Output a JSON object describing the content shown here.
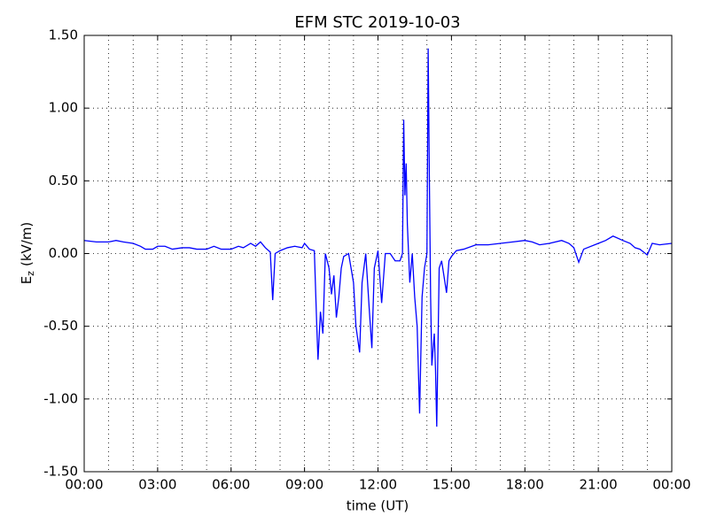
{
  "chart_data": {
    "type": "line",
    "title": "EFM STC    2019-10-03",
    "xlabel": "time (UT)",
    "ylabel": {
      "main": "E",
      "sub": "z",
      "unit": "(kV/m)"
    },
    "xlim": [
      0,
      24
    ],
    "ylim": [
      -1.5,
      1.5
    ],
    "xticks": [
      {
        "value": 0,
        "label": "00:00"
      },
      {
        "value": 3,
        "label": "03:00"
      },
      {
        "value": 6,
        "label": "06:00"
      },
      {
        "value": 9,
        "label": "09:00"
      },
      {
        "value": 12,
        "label": "12:00"
      },
      {
        "value": 15,
        "label": "15:00"
      },
      {
        "value": 18,
        "label": "18:00"
      },
      {
        "value": 21,
        "label": "21:00"
      },
      {
        "value": 24,
        "label": "00:00"
      }
    ],
    "xgrid": [
      1,
      2,
      3,
      4,
      5,
      6,
      7,
      8,
      9,
      10,
      11,
      12,
      13,
      14,
      15,
      16,
      17,
      18,
      19,
      20,
      21,
      22,
      23
    ],
    "yticks": [
      {
        "value": -1.5,
        "label": "-1.50"
      },
      {
        "value": -1,
        "label": "-1.00"
      },
      {
        "value": -0.5,
        "label": "-0.50"
      },
      {
        "value": 0,
        "label": "0.00"
      },
      {
        "value": 0.5,
        "label": "0.50"
      },
      {
        "value": 1,
        "label": "1.00"
      },
      {
        "value": 1.5,
        "label": "1.50"
      }
    ],
    "grid": true,
    "series": [
      {
        "color": "#0000ff",
        "x": [
          0,
          0.5,
          1,
          1.3,
          1.6,
          2,
          2.3,
          2.5,
          2.8,
          3,
          3.3,
          3.6,
          4,
          4.3,
          4.6,
          5,
          5.3,
          5.6,
          6,
          6.3,
          6.5,
          6.8,
          7,
          7.2,
          7.4,
          7.6,
          7.7,
          7.8,
          8,
          8.3,
          8.6,
          8.9,
          9,
          9.2,
          9.4,
          9.5,
          9.55,
          9.65,
          9.75,
          9.85,
          10,
          10.1,
          10.2,
          10.3,
          10.4,
          10.5,
          10.6,
          10.8,
          11,
          11.1,
          11.25,
          11.35,
          11.5,
          11.65,
          11.75,
          11.85,
          12,
          12.15,
          12.3,
          12.5,
          12.7,
          12.9,
          13,
          13.05,
          13.1,
          13.15,
          13.2,
          13.3,
          13.4,
          13.5,
          13.6,
          13.7,
          13.8,
          13.9,
          14,
          14.05,
          14.1,
          14.15,
          14.2,
          14.3,
          14.35,
          14.4,
          14.5,
          14.6,
          14.8,
          14.9,
          15,
          15.2,
          15.5,
          16,
          16.5,
          17,
          17.5,
          18,
          18.3,
          18.6,
          19,
          19.5,
          19.8,
          20,
          20.2,
          20.4,
          21,
          21.3,
          21.6,
          22,
          22.3,
          22.5,
          22.7,
          23,
          23.2,
          23.5,
          24
        ],
        "values": [
          0.09,
          0.08,
          0.08,
          0.09,
          0.08,
          0.07,
          0.05,
          0.03,
          0.03,
          0.05,
          0.05,
          0.03,
          0.04,
          0.04,
          0.03,
          0.03,
          0.05,
          0.03,
          0.03,
          0.05,
          0.04,
          0.07,
          0.05,
          0.08,
          0.04,
          0.01,
          -0.32,
          0,
          0.02,
          0.04,
          0.05,
          0.04,
          0.07,
          0.03,
          0.02,
          -0.5,
          -0.73,
          -0.4,
          -0.55,
          0,
          -0.1,
          -0.28,
          -0.15,
          -0.44,
          -0.3,
          -0.1,
          -0.02,
          0,
          -0.2,
          -0.5,
          -0.68,
          -0.2,
          0,
          -0.4,
          -0.65,
          -0.1,
          0.02,
          -0.34,
          0,
          0,
          -0.05,
          -0.05,
          0,
          0.92,
          0.4,
          0.62,
          0.2,
          -0.2,
          0,
          -0.3,
          -0.5,
          -1.1,
          -0.3,
          -0.1,
          0,
          1.41,
          0.5,
          -0.3,
          -0.77,
          -0.55,
          -0.8,
          -1.19,
          -0.1,
          -0.05,
          -0.27,
          -0.05,
          -0.02,
          0.02,
          0.03,
          0.06,
          0.06,
          0.07,
          0.08,
          0.09,
          0.08,
          0.06,
          0.07,
          0.09,
          0.07,
          0.04,
          -0.06,
          0.03,
          0.07,
          0.09,
          0.12,
          0.09,
          0.07,
          0.04,
          0.03,
          -0.01,
          0.07,
          0.06,
          0.07
        ]
      }
    ]
  }
}
